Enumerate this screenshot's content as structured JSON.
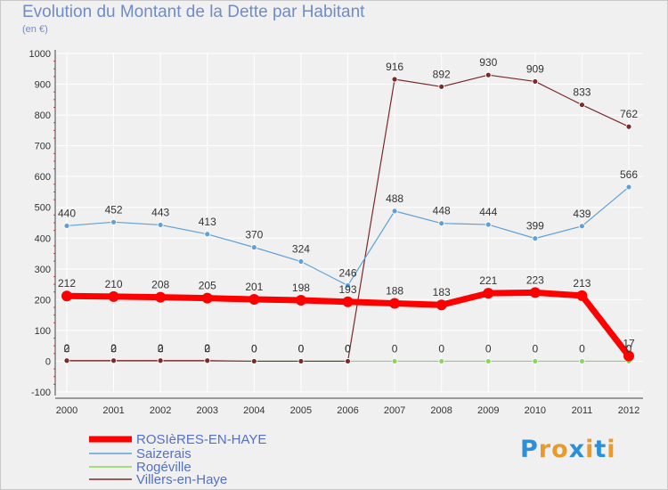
{
  "title": "Evolution du Montant de la Dette par Habitant",
  "subtitle": "(en €)",
  "logo": {
    "letters": [
      "P",
      "r",
      "o",
      "x",
      "i",
      "t",
      "i"
    ],
    "colors": [
      "#2d8fd8",
      "#e89a2a",
      "#e89a2a",
      "#2d8fd8",
      "#e89a2a",
      "#2d8fd8",
      "#e89a2a"
    ]
  },
  "chart_data": {
    "type": "line",
    "title": "Evolution du Montant de la Dette par Habitant",
    "ylabel": "(en €)",
    "xlabel": "",
    "x": [
      "2000",
      "2001",
      "2002",
      "2003",
      "2004",
      "2005",
      "2006",
      "2007",
      "2008",
      "2009",
      "2010",
      "2011",
      "2012"
    ],
    "ylim": [
      -100,
      1000
    ],
    "yticks": [
      "-100",
      "0",
      "100",
      "200",
      "300",
      "400",
      "500",
      "600",
      "700",
      "800",
      "900",
      "1000"
    ],
    "grid": true,
    "legend_position": "bottom-left",
    "series": [
      {
        "name": "ROSIèRES-EN-HAYE",
        "color": "#ff0000",
        "values": [
          212,
          210,
          208,
          205,
          201,
          198,
          193,
          188,
          183,
          221,
          223,
          213,
          17
        ]
      },
      {
        "name": "Saizerais",
        "color": "#5fa0d8",
        "values": [
          440,
          452,
          443,
          413,
          370,
          324,
          246,
          488,
          448,
          444,
          399,
          439,
          566
        ]
      },
      {
        "name": "Rogéville",
        "color": "#88d858",
        "values": [
          0,
          0,
          0,
          0,
          0,
          0,
          0,
          0,
          0,
          0,
          0,
          0,
          0
        ]
      },
      {
        "name": "Villers-en-Haye",
        "color": "#7a2a2a",
        "values": [
          2,
          2,
          2,
          2,
          0,
          0,
          0,
          916,
          892,
          930,
          909,
          833,
          762
        ]
      }
    ]
  }
}
